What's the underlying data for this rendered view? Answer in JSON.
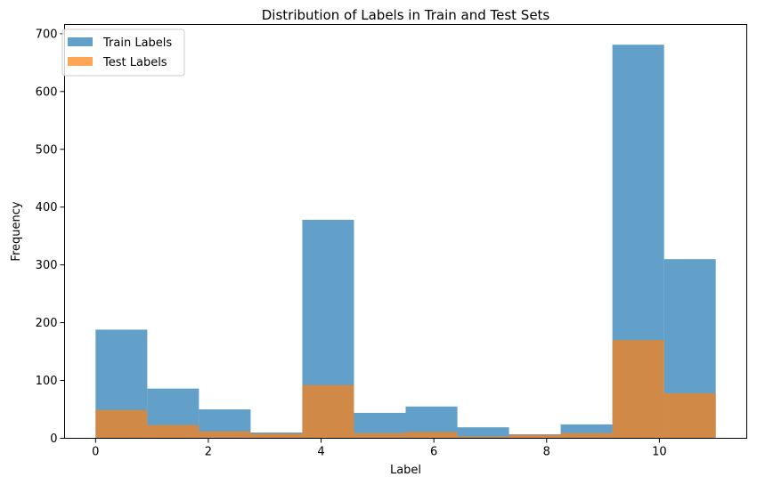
{
  "chart_data": {
    "type": "bar",
    "title": "Distribution of Labels in Train and Test Sets",
    "xlabel": "Label",
    "ylabel": "Frequency",
    "xlim": [
      -0.55,
      11.55
    ],
    "ylim": [
      0,
      716
    ],
    "xticks": [
      0,
      2,
      4,
      6,
      8,
      10
    ],
    "yticks": [
      0,
      100,
      200,
      300,
      400,
      500,
      600,
      700
    ],
    "bin_edges": [
      0,
      0.9167,
      1.8333,
      2.75,
      3.6667,
      4.5833,
      5.5,
      6.4167,
      7.3333,
      8.25,
      9.1667,
      10.0833,
      11
    ],
    "series": [
      {
        "name": "Train Labels",
        "color": "#1f77b4",
        "alpha": 0.7,
        "values": [
          188,
          86,
          50,
          10,
          378,
          44,
          55,
          19,
          7,
          24,
          681,
          310
        ]
      },
      {
        "name": "Test Labels",
        "color": "#ff7f0e",
        "alpha": 0.7,
        "values": [
          49,
          23,
          12,
          8,
          92,
          9,
          11,
          3,
          6,
          9,
          170,
          78
        ]
      }
    ],
    "legend_position": "top-left",
    "grid": false
  }
}
